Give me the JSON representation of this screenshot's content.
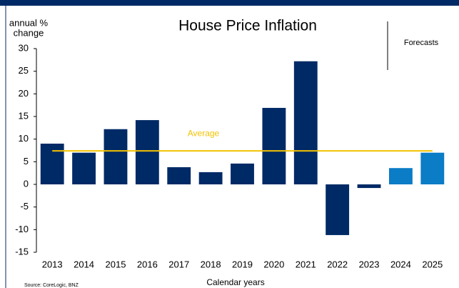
{
  "chart_data": {
    "type": "bar",
    "title": "House Price Inflation",
    "ylabel": [
      "annual %",
      "change"
    ],
    "xlabel": "Calendar years",
    "categories": [
      "2013",
      "2014",
      "2015",
      "2016",
      "2017",
      "2018",
      "2019",
      "2020",
      "2021",
      "2022",
      "2023",
      "2024",
      "2025"
    ],
    "values": [
      9.0,
      7.0,
      12.2,
      14.2,
      3.8,
      2.7,
      4.6,
      16.9,
      27.2,
      -11.2,
      -0.8,
      3.6,
      7.0
    ],
    "colors": [
      "#002a66",
      "#002a66",
      "#002a66",
      "#002a66",
      "#002a66",
      "#002a66",
      "#002a66",
      "#002a66",
      "#002a66",
      "#002a66",
      "#002a66",
      "#0b7cc6",
      "#0b7cc6"
    ],
    "average": {
      "label": "Average",
      "value": 7.4,
      "color": "#f2c200"
    },
    "annotation": "Forecasts",
    "source": "Source: CoreLogic, BNZ",
    "ylim": [
      -15,
      30
    ],
    "yticks": [
      -15,
      -10,
      -5,
      0,
      5,
      10,
      15,
      20,
      25,
      30
    ],
    "grid": false
  }
}
